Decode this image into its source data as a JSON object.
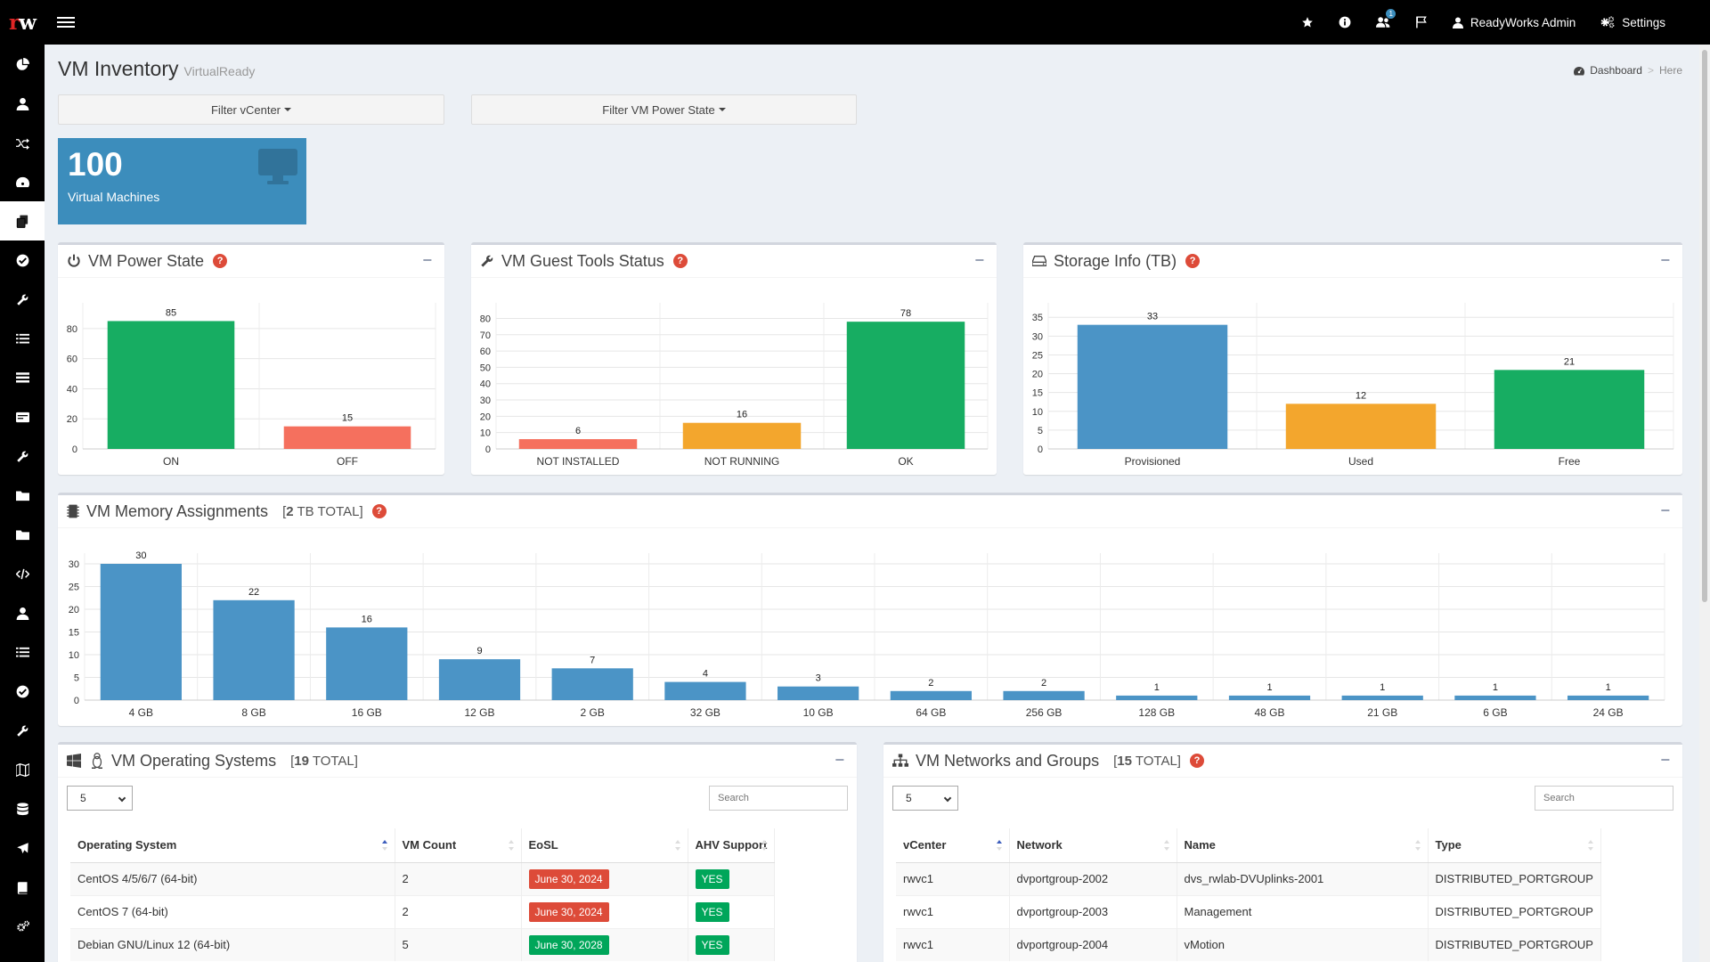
{
  "topbar": {
    "logo_r": "r",
    "logo_w": "w",
    "notification_count": "1",
    "user_name": "ReadyWorks Admin",
    "settings_label": "Settings"
  },
  "sidebar": {
    "items": [
      "pie-chart-icon",
      "user-icon",
      "random-icon",
      "dashboard-icon",
      "copy-icon",
      "check-circle-icon",
      "wrench-icon",
      "list-icon",
      "list-alt-icon",
      "card-icon",
      "wrench-icon",
      "folder-icon",
      "folder-icon",
      "code-icon",
      "user-icon",
      "list-icon",
      "check-circle-icon",
      "wrench-icon",
      "map-icon",
      "database-icon",
      "plane-icon",
      "book-icon",
      "cogs-icon"
    ],
    "active_index": 4
  },
  "page": {
    "title": "VM Inventory",
    "subtitle": "VirtualReady",
    "breadcrumb_home": "Dashboard",
    "breadcrumb_sep": ">",
    "breadcrumb_current": "Here"
  },
  "filters": {
    "vcenter": "Filter vCenter",
    "power_state": "Filter VM Power State"
  },
  "stat": {
    "value": "100",
    "label": "Virtual Machines"
  },
  "colors": {
    "green": "#17ad62",
    "red": "#f5705e",
    "orange": "#f3a62d",
    "blue": "#4b94c6",
    "stat_blue": "#3c8dbc"
  },
  "boxes": {
    "power": {
      "title": "VM Power State",
      "help": "?",
      "collapse": "−"
    },
    "guest": {
      "title": "VM Guest Tools Status",
      "help": "?",
      "collapse": "−"
    },
    "storage": {
      "title": "Storage Info (TB)",
      "help": "?",
      "collapse": "−"
    },
    "memory": {
      "title": "VM Memory Assignments",
      "total_open": "[",
      "total_value": "2",
      "total_rest": " TB TOTAL]",
      "help": "?",
      "collapse": "−"
    },
    "os": {
      "title": "VM Operating Systems",
      "total_open": "[",
      "total_value": "19",
      "total_rest": " TOTAL]",
      "collapse": "−"
    },
    "networks": {
      "title": "VM Networks and Groups",
      "total_open": "[",
      "total_value": "15",
      "total_rest": " TOTAL]",
      "help": "?",
      "collapse": "−"
    }
  },
  "chart_data": [
    {
      "id": "power",
      "type": "bar",
      "categories": [
        "ON",
        "OFF"
      ],
      "values": [
        85,
        15
      ],
      "colors": [
        "#17ad62",
        "#f5705e"
      ],
      "ylim": [
        0,
        90
      ],
      "yticks": [
        0,
        20,
        40,
        60,
        80
      ],
      "grid": true
    },
    {
      "id": "guest",
      "type": "bar",
      "categories": [
        "NOT INSTALLED",
        "NOT RUNNING",
        "OK"
      ],
      "values": [
        6,
        16,
        78
      ],
      "colors": [
        "#f5705e",
        "#f3a62d",
        "#17ad62"
      ],
      "ylim": [
        0,
        83
      ],
      "yticks": [
        0,
        10,
        20,
        30,
        40,
        50,
        60,
        70,
        80
      ],
      "grid": true
    },
    {
      "id": "storage",
      "type": "bar",
      "categories": [
        "Provisioned",
        "Used",
        "Free"
      ],
      "values": [
        33,
        12,
        21
      ],
      "colors": [
        "#4b94c6",
        "#f3a62d",
        "#17ad62"
      ],
      "ylim": [
        0,
        36
      ],
      "yticks": [
        0,
        5,
        10,
        15,
        20,
        25,
        30,
        35
      ],
      "grid": true
    },
    {
      "id": "memory",
      "type": "bar",
      "categories": [
        "4 GB",
        "8 GB",
        "16 GB",
        "12 GB",
        "2 GB",
        "32 GB",
        "10 GB",
        "64 GB",
        "256 GB",
        "128 GB",
        "48 GB",
        "21 GB",
        "6 GB",
        "24 GB"
      ],
      "values": [
        30,
        22,
        16,
        9,
        7,
        4,
        3,
        2,
        2,
        1,
        1,
        1,
        1,
        1
      ],
      "colors": [
        "#4b94c6"
      ],
      "ylim": [
        0,
        30
      ],
      "yticks": [
        0,
        5,
        10,
        15,
        20,
        25,
        30
      ],
      "grid": true
    }
  ],
  "os_table": {
    "page_size": "5",
    "search_placeholder": "Search",
    "columns": [
      "Operating System",
      "VM Count",
      "EoSL",
      "AHV Support"
    ],
    "rows": [
      {
        "os": "CentOS 4/5/6/7 (64-bit)",
        "count": "2",
        "eosl": "June 30, 2024",
        "eosl_status": "red",
        "ahv": "YES"
      },
      {
        "os": "CentOS 7 (64-bit)",
        "count": "2",
        "eosl": "June 30, 2024",
        "eosl_status": "red",
        "ahv": "YES"
      },
      {
        "os": "Debian GNU/Linux 12 (64-bit)",
        "count": "5",
        "eosl": "June 30, 2028",
        "eosl_status": "green",
        "ahv": "YES"
      }
    ]
  },
  "net_table": {
    "page_size": "5",
    "search_placeholder": "Search",
    "columns": [
      "vCenter",
      "Network",
      "Name",
      "Type"
    ],
    "rows": [
      {
        "vcenter": "rwvc1",
        "network": "dvportgroup-2002",
        "name": "dvs_rwlab-DVUplinks-2001",
        "type": "DISTRIBUTED_PORTGROUP"
      },
      {
        "vcenter": "rwvc1",
        "network": "dvportgroup-2003",
        "name": "Management",
        "type": "DISTRIBUTED_PORTGROUP"
      },
      {
        "vcenter": "rwvc1",
        "network": "dvportgroup-2004",
        "name": "vMotion",
        "type": "DISTRIBUTED_PORTGROUP"
      }
    ]
  }
}
